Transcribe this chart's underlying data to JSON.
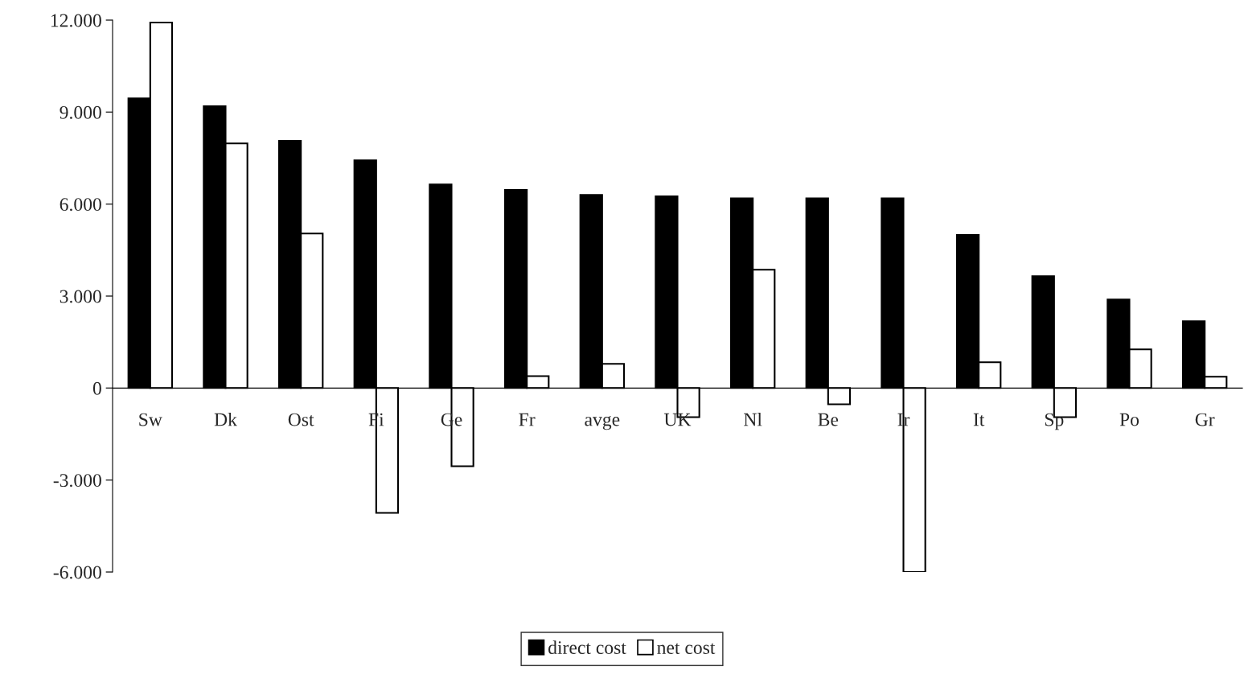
{
  "chart_data": {
    "type": "bar",
    "categories": [
      "Sw",
      "Dk",
      "Ost",
      "Fi",
      "Ge",
      "Fr",
      "avge",
      "UK",
      "Nl",
      "Be",
      "Ir",
      "It",
      "Sp",
      "Po",
      "Gr"
    ],
    "series": [
      {
        "name": "direct cost",
        "color": "#000000",
        "values": [
          9450,
          9190,
          8060,
          7430,
          6640,
          6460,
          6300,
          6250,
          6190,
          6190,
          6190,
          4990,
          3650,
          2890,
          2180
        ]
      },
      {
        "name": "net cost",
        "color": "#ffffff",
        "values": [
          11920,
          7980,
          5040,
          -4070,
          -2550,
          390,
          790,
          -950,
          3860,
          -530,
          -6000,
          840,
          -950,
          1260,
          370
        ]
      }
    ],
    "ylim": [
      -6000,
      12000
    ],
    "yticks": [
      {
        "value": -6000,
        "label": "-6.000"
      },
      {
        "value": -3000,
        "label": "-3.000"
      },
      0,
      {
        "value": 3000,
        "label": "3.000"
      },
      {
        "value": 6000,
        "label": "6.000"
      },
      {
        "value": 9000,
        "label": "9.000"
      },
      {
        "value": 12000,
        "label": "12.000"
      }
    ],
    "grid": false,
    "legend": "bottom"
  }
}
